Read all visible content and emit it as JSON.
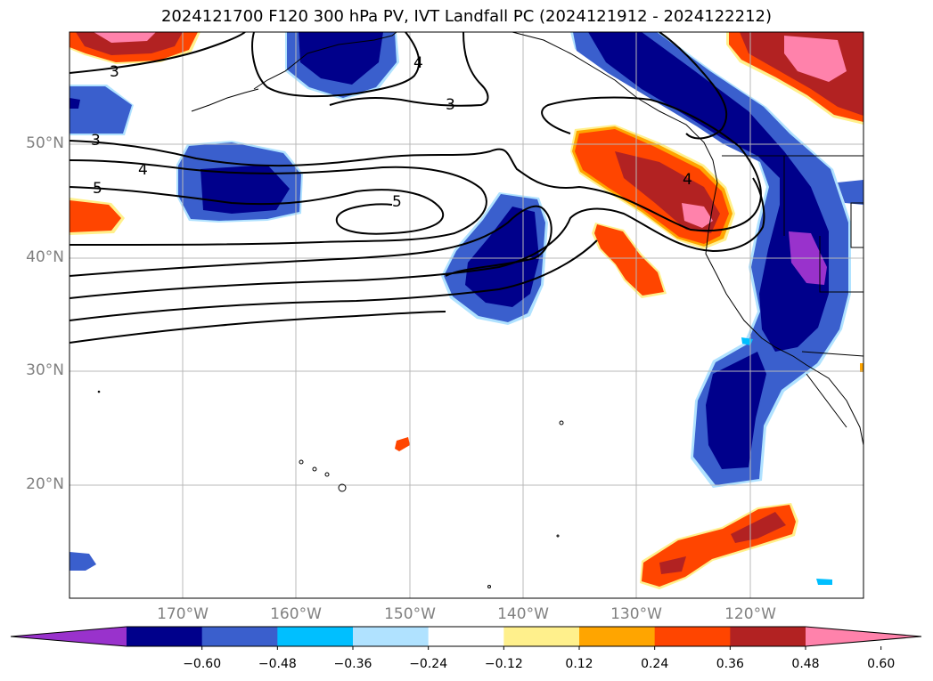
{
  "title": "2024121700 F120 300 hPa PV, IVT Landfall PC (2024121912 - 2024122212)",
  "map": {
    "projection": "PlateCarree",
    "extent_lon": [
      -180,
      -110
    ],
    "extent_lat": [
      10,
      60
    ],
    "lat_labels": [
      "50°N",
      "40°N",
      "30°N",
      "20°N"
    ],
    "lon_labels": [
      "170°W",
      "160°W",
      "150°W",
      "140°W",
      "130°W",
      "120°W"
    ],
    "gridlines": true,
    "coastlines": true,
    "contour_labels": [
      "3",
      "3",
      "3",
      "4",
      "4",
      "5",
      "5",
      "4"
    ]
  },
  "colorbar": {
    "tick_labels": [
      "−0.60",
      "−0.48",
      "−0.36",
      "−0.24",
      "−0.12",
      "0.12",
      "0.24",
      "0.36",
      "0.48",
      "0.60"
    ],
    "colors": [
      "#9932cc",
      "#00008b",
      "#3a5fcd",
      "#00bfff",
      "#b0e2ff",
      "#ffffff",
      "#fff08c",
      "#ffa500",
      "#ff4500",
      "#b22222",
      "#ff82ab"
    ],
    "extend": "both"
  },
  "legend_colors": {
    "neg1": "#b0e2ff",
    "neg2": "#00bfff",
    "neg3": "#3a5fcd",
    "neg4": "#00008b",
    "neg5": "#9932cc",
    "pos1": "#fff08c",
    "pos2": "#ffa500",
    "pos3": "#ff4500",
    "pos4": "#b22222",
    "pos5": "#ff82ab"
  }
}
